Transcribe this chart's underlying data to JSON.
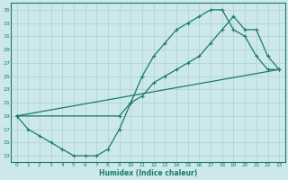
{
  "xlabel": "Humidex (Indice chaleur)",
  "bg_color": "#cce8ea",
  "line_color": "#1a7a6e",
  "grid_color": "#b0d4d8",
  "xlim": [
    -0.5,
    23.5
  ],
  "ylim": [
    12,
    36
  ],
  "xticks": [
    0,
    1,
    2,
    3,
    4,
    5,
    6,
    7,
    8,
    9,
    10,
    11,
    12,
    13,
    14,
    15,
    16,
    17,
    18,
    19,
    20,
    21,
    22,
    23
  ],
  "yticks": [
    13,
    15,
    17,
    19,
    21,
    23,
    25,
    27,
    29,
    31,
    33,
    35
  ],
  "line1_x": [
    0,
    1,
    2,
    3,
    4,
    5,
    6,
    7,
    8,
    9,
    10,
    11,
    12,
    13,
    14,
    15,
    16,
    17,
    18,
    19,
    20,
    21,
    22,
    23
  ],
  "line1_y": [
    19,
    17,
    16,
    15,
    14,
    13,
    13,
    13,
    14,
    17,
    21,
    25,
    28,
    30,
    32,
    33,
    34,
    35,
    35,
    32,
    31,
    28,
    26,
    26
  ],
  "line2_x": [
    0,
    23
  ],
  "line2_y": [
    19,
    26
  ],
  "line3_x": [
    0,
    9,
    10,
    11,
    12,
    13,
    14,
    15,
    16,
    17,
    18,
    19,
    20,
    21,
    22,
    23
  ],
  "line3_y": [
    19,
    19,
    21,
    22,
    24,
    25,
    26,
    27,
    28,
    30,
    32,
    34,
    32,
    32,
    28,
    26
  ]
}
